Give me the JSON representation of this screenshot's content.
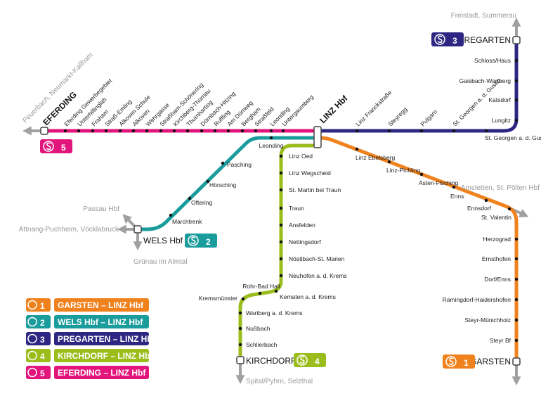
{
  "colors": {
    "s1": "#f0821e",
    "s2": "#1a9c9c",
    "s3": "#2d2783",
    "s4": "#9bbd1c",
    "s5": "#e2157c",
    "ext": "#a0a0a0"
  },
  "hub": "LINZ Hbf",
  "lines": {
    "s5": {
      "badge": "5",
      "terminus": "EFERDING",
      "stations": [
        "Eferding Gewerbegebiet",
        "Unterhillinglah",
        "Fraham",
        "Straß-Emling",
        "Alkoven Schule",
        "Alkoven",
        "Wehrgasse",
        "Straßham-Schönering",
        "Kirchberg-Thürnau",
        "Thurnharting",
        "Dörnbach-Hitzing",
        "Ruffling",
        "Am Dürrweg",
        "Bergham",
        "Straßfeld",
        "Leonding",
        "Untergaumberg"
      ],
      "beyond": "Peuerbach, Neumarkt-Kallham"
    },
    "s3": {
      "badge": "3",
      "terminus": "PREGARTEN",
      "stations_h": [
        "Linz Franckstraße",
        "Steyregg",
        "Pulgarn",
        "St. Georgen a. d. Gusen",
        "St. Georgen a. d. Gusen Hst"
      ],
      "stations_v": [
        "Lungitz",
        "Katsdorf",
        "Gaisbach-Wartberg",
        "Schloss/Haus"
      ],
      "beyond": "Freistadt, Summerau"
    },
    "s2": {
      "badge": "2",
      "terminus": "WELS Hbf",
      "stations": [
        "Leonding",
        "Pasching",
        "Hörsching",
        "Oftering",
        "Marchtrenk"
      ],
      "beyond": [
        "Passau Hbf",
        "Attnang-Puchheim, Vöcklabruck",
        "Grünau im Almtal"
      ]
    },
    "s4": {
      "badge": "4",
      "terminus": "KIRCHDORF",
      "stations": [
        "Linz Oed",
        "Linz Wegscheid",
        "St. Martin bei Traun",
        "Traun",
        "Ansfelden",
        "Nettingsdorf",
        "Nöstlbach-St. Marien",
        "Neuhofen a. d. Krems",
        "Kematen a. d. Krems",
        "Rohr-Bad Hall",
        "Kremsmünster",
        "Wartberg a. d. Krems",
        "Nußbach",
        "Schlierbach"
      ],
      "beyond": "Spital/Pyhrn, Selzthal"
    },
    "s1": {
      "badge": "1",
      "terminus": "GARSTEN",
      "stations_d": [
        "Linz Ebelsberg",
        "Linz-Pichling",
        "Asten-Fisching",
        "Enns",
        "Ennsdorf",
        "St. Valentin"
      ],
      "stations_v": [
        "Herzograd",
        "Ernsthofen",
        "Dorf/Enns",
        "Ramingdorf-Haidershofen",
        "Steyr-Münichholz",
        "Steyr Bf"
      ],
      "beyond": "Amstetten, St. Pölten Hbf"
    }
  },
  "legend": [
    {
      "line": "s1",
      "num": "1",
      "label": "GARSTEN – LINZ Hbf"
    },
    {
      "line": "s2",
      "num": "2",
      "label": "WELS Hbf – LINZ Hbf"
    },
    {
      "line": "s3",
      "num": "3",
      "label": "PREGARTEN – LINZ Hbf"
    },
    {
      "line": "s4",
      "num": "4",
      "label": "KIRCHDORF – LINZ Hbf"
    },
    {
      "line": "s5",
      "num": "5",
      "label": "EFERDING – LINZ Hbf"
    }
  ]
}
